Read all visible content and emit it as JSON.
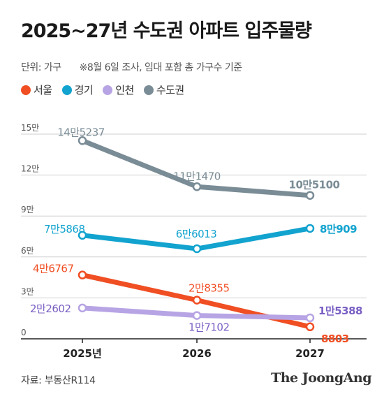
{
  "title": "2025~27년 수도권 아파트 입주물량",
  "meta": {
    "unit": "단위: 가구",
    "note": "※8월 6일 조사, 임대 포함 총 가구수 기준"
  },
  "legend": [
    {
      "label": "서울",
      "color": "#f04e23"
    },
    {
      "label": "경기",
      "color": "#12a3cf"
    },
    {
      "label": "인천",
      "color": "#b7a4e4"
    },
    {
      "label": "수도권",
      "color": "#7a8c96"
    }
  ],
  "source": "자료: 부동산R114",
  "brand": "The JoongAng",
  "chart_data": {
    "type": "line",
    "x": [
      "2025년",
      "2026",
      "2027"
    ],
    "yticks": [
      "0",
      "3만",
      "6만",
      "9만",
      "12만",
      "15만"
    ],
    "ylim": [
      0,
      150000
    ],
    "grid": true,
    "series": [
      {
        "name": "수도권",
        "color": "#7a8c96",
        "label_color": "#7a8c96",
        "values": [
          145237,
          111470,
          105100
        ],
        "labels": [
          "14만5237",
          "11만1470",
          "10만5100"
        ]
      },
      {
        "name": "경기",
        "color": "#12a3cf",
        "label_color": "#12a3cf",
        "values": [
          75868,
          66013,
          80909
        ],
        "labels": [
          "7만5868",
          "6만6013",
          "8만909"
        ]
      },
      {
        "name": "서울",
        "color": "#f04e23",
        "label_color": "#f04e23",
        "values": [
          46767,
          28355,
          8803
        ],
        "labels": [
          "4만6767",
          "2만8355",
          "8803"
        ]
      },
      {
        "name": "인천",
        "color": "#b7a4e4",
        "label_color": "#7a5fc4",
        "values": [
          22602,
          17102,
          15388
        ],
        "labels": [
          "2만2602",
          "1만7102",
          "1만5388"
        ]
      }
    ]
  }
}
